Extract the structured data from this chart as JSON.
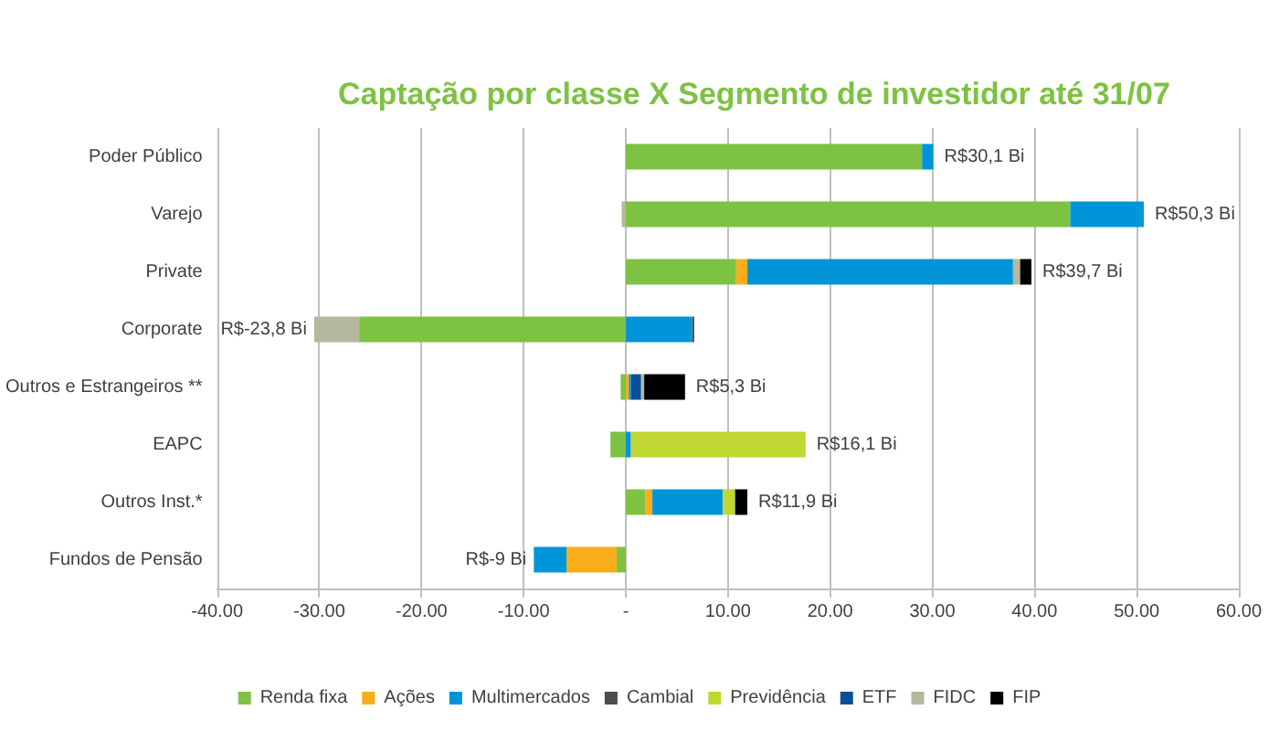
{
  "chart_data": {
    "type": "bar",
    "orientation": "horizontal",
    "stacked": true,
    "title": "Captação por classe X Segmento de investidor até 31/07",
    "categories": [
      "Poder Público",
      "Varejo",
      "Private",
      "Corporate",
      "Outros e Estrangeiros **",
      "EAPC",
      "Outros Inst.*",
      "Fundos de Pensão"
    ],
    "series": [
      {
        "name": "Renda fixa",
        "color": "#7dc242",
        "values": [
          29.0,
          43.5,
          10.8,
          -26.1,
          -0.5,
          -1.5,
          1.9,
          -0.9
        ]
      },
      {
        "name": "Ações",
        "color": "#f9ad1b",
        "values": [
          null,
          null,
          1.1,
          null,
          0.3,
          null,
          0.7,
          -4.9
        ]
      },
      {
        "name": "Multimercados",
        "color": "#0095d9",
        "values": [
          1.1,
          7.2,
          26.0,
          6.5,
          0.2,
          0.5,
          6.9,
          -3.2
        ]
      },
      {
        "name": "Cambial",
        "color": "#4d4d4d",
        "values": [
          null,
          null,
          null,
          0.2,
          null,
          null,
          null,
          null
        ]
      },
      {
        "name": "Previdência",
        "color": "#bfd730",
        "values": [
          null,
          null,
          null,
          null,
          null,
          17.1,
          1.2,
          null
        ]
      },
      {
        "name": "ETF",
        "color": "#0b4f9c",
        "values": [
          null,
          null,
          null,
          null,
          1.0,
          null,
          null,
          null
        ]
      },
      {
        "name": "FIDC",
        "color": "#b5b89d",
        "values": [
          null,
          -0.4,
          0.7,
          -4.4,
          0.3,
          null,
          null,
          null
        ]
      },
      {
        "name": "FIP",
        "color": "#000000",
        "values": [
          null,
          null,
          1.1,
          null,
          4.0,
          null,
          1.2,
          null
        ]
      }
    ],
    "totals": [
      "R$30,1 Bi",
      "R$50,3 Bi",
      "R$39,7 Bi",
      "R$-23,8 Bi",
      "R$5,3 Bi",
      "R$16,1 Bi",
      "R$11,9 Bi",
      "R$-9 Bi"
    ],
    "xlim": [
      -40,
      60
    ],
    "xticks": [
      {
        "value": -40,
        "label": "-40.00"
      },
      {
        "value": -30,
        "label": "-30.00"
      },
      {
        "value": -20,
        "label": "-20.00"
      },
      {
        "value": -10,
        "label": "-10.00"
      },
      {
        "value": 0,
        "label": "-"
      },
      {
        "value": 10,
        "label": "10.00"
      },
      {
        "value": 20,
        "label": "20.00"
      },
      {
        "value": 30,
        "label": "30.00"
      },
      {
        "value": 40,
        "label": "40.00"
      },
      {
        "value": 50,
        "label": "50.00"
      },
      {
        "value": 60,
        "label": "60.00"
      }
    ],
    "grid": "x",
    "legend": "bottom"
  }
}
